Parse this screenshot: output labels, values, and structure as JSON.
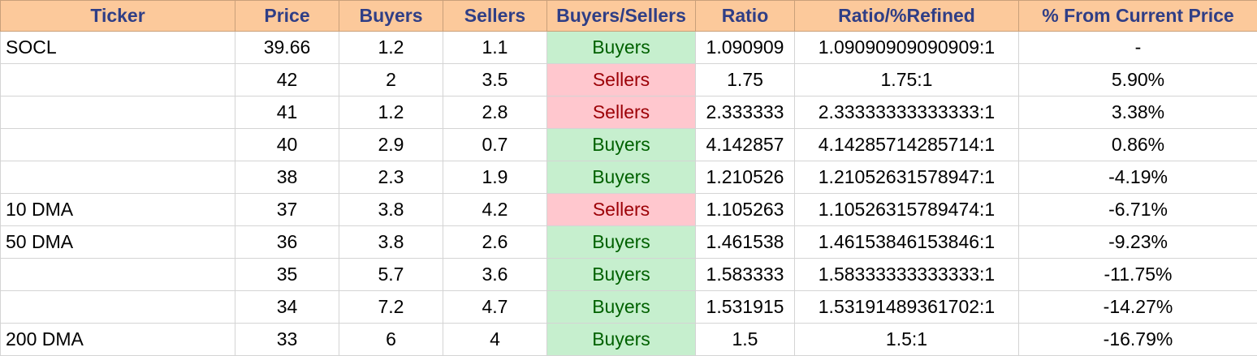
{
  "colors": {
    "header_bg": "#fcc99b",
    "header_text": "#2f3e86",
    "buyers_bg": "#c6efce",
    "buyers_text": "#006100",
    "sellers_bg": "#ffc7ce",
    "sellers_text": "#9c0006",
    "grid_line": "#d4d4d4"
  },
  "table": {
    "headers": [
      "Ticker",
      "Price",
      "Buyers",
      "Sellers",
      "Buyers/Sellers",
      "Ratio",
      "Ratio/%Refined",
      "% From Current Price"
    ],
    "rows": [
      {
        "ticker": "SOCL",
        "price": "39.66",
        "buyers": "1.2",
        "sellers": "1.1",
        "bs": "Buyers",
        "ratio": "1.090909",
        "refined": "1.09090909090909:1",
        "pct": "-"
      },
      {
        "ticker": "",
        "price": "42",
        "buyers": "2",
        "sellers": "3.5",
        "bs": "Sellers",
        "ratio": "1.75",
        "refined": "1.75:1",
        "pct": "5.90%"
      },
      {
        "ticker": "",
        "price": "41",
        "buyers": "1.2",
        "sellers": "2.8",
        "bs": "Sellers",
        "ratio": "2.333333",
        "refined": "2.33333333333333:1",
        "pct": "3.38%"
      },
      {
        "ticker": "",
        "price": "40",
        "buyers": "2.9",
        "sellers": "0.7",
        "bs": "Buyers",
        "ratio": "4.142857",
        "refined": "4.14285714285714:1",
        "pct": "0.86%"
      },
      {
        "ticker": "",
        "price": "38",
        "buyers": "2.3",
        "sellers": "1.9",
        "bs": "Buyers",
        "ratio": "1.210526",
        "refined": "1.21052631578947:1",
        "pct": "-4.19%"
      },
      {
        "ticker": "10 DMA",
        "price": "37",
        "buyers": "3.8",
        "sellers": "4.2",
        "bs": "Sellers",
        "ratio": "1.105263",
        "refined": "1.10526315789474:1",
        "pct": "-6.71%"
      },
      {
        "ticker": "50 DMA",
        "price": "36",
        "buyers": "3.8",
        "sellers": "2.6",
        "bs": "Buyers",
        "ratio": "1.461538",
        "refined": "1.46153846153846:1",
        "pct": "-9.23%"
      },
      {
        "ticker": "",
        "price": "35",
        "buyers": "5.7",
        "sellers": "3.6",
        "bs": "Buyers",
        "ratio": "1.583333",
        "refined": "1.58333333333333:1",
        "pct": "-11.75%"
      },
      {
        "ticker": "",
        "price": "34",
        "buyers": "7.2",
        "sellers": "4.7",
        "bs": "Buyers",
        "ratio": "1.531915",
        "refined": "1.53191489361702:1",
        "pct": "-14.27%"
      },
      {
        "ticker": "200 DMA",
        "price": "33",
        "buyers": "6",
        "sellers": "4",
        "bs": "Buyers",
        "ratio": "1.5",
        "refined": "1.5:1",
        "pct": "-16.79%"
      }
    ]
  }
}
